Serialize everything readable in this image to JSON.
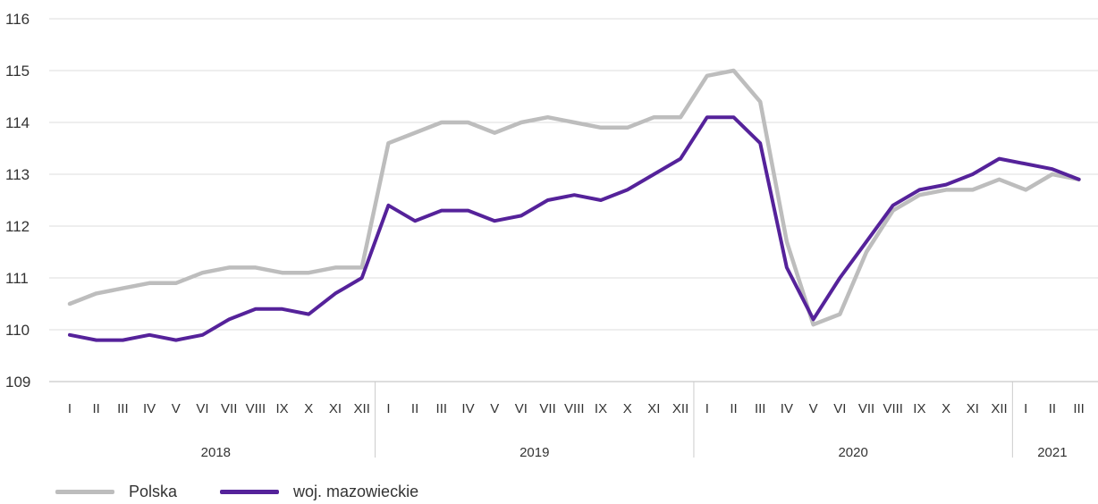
{
  "chart_data": {
    "type": "line",
    "ylim": [
      109,
      116
    ],
    "yticks": [
      "109",
      "110",
      "111",
      "112",
      "113",
      "114",
      "115",
      "116"
    ],
    "categories": [
      "I",
      "II",
      "III",
      "IV",
      "V",
      "VI",
      "VII",
      "VIII",
      "IX",
      "X",
      "XI",
      "XII",
      "I",
      "II",
      "III",
      "IV",
      "V",
      "VI",
      "VII",
      "VIII",
      "IX",
      "X",
      "XI",
      "XII",
      "I",
      "II",
      "III",
      "IV",
      "V",
      "VI",
      "VII",
      "VIII",
      "IX",
      "X",
      "XI",
      "XII",
      "I",
      "II",
      "III"
    ],
    "years": [
      {
        "label": "2018",
        "count": 12
      },
      {
        "label": "2019",
        "count": 12
      },
      {
        "label": "2020",
        "count": 12
      },
      {
        "label": "2021",
        "count": 3
      }
    ],
    "series": [
      {
        "name": "Polska",
        "color": "#bdbdbd",
        "values": [
          110.5,
          110.7,
          110.8,
          110.9,
          110.9,
          111.1,
          111.2,
          111.2,
          111.1,
          111.1,
          111.2,
          111.2,
          113.6,
          113.8,
          114.0,
          114.0,
          113.8,
          114.0,
          114.1,
          114.0,
          113.9,
          113.9,
          114.1,
          114.1,
          114.9,
          115.0,
          114.4,
          111.7,
          110.1,
          110.3,
          111.5,
          112.3,
          112.6,
          112.7,
          112.7,
          112.9,
          112.7,
          113.0,
          112.9
        ]
      },
      {
        "name": "woj. mazowieckie",
        "color": "#55229a",
        "values": [
          109.9,
          109.8,
          109.8,
          109.9,
          109.8,
          109.9,
          110.2,
          110.4,
          110.4,
          110.3,
          110.7,
          111.0,
          112.4,
          112.1,
          112.3,
          112.3,
          112.1,
          112.2,
          112.5,
          112.6,
          112.5,
          112.7,
          113.0,
          113.3,
          114.1,
          114.1,
          113.6,
          111.2,
          110.2,
          111.0,
          111.7,
          112.4,
          112.7,
          112.8,
          113.0,
          113.3,
          113.2,
          113.1,
          112.9
        ]
      }
    ],
    "grid": true,
    "legend_position": "bottom-left"
  }
}
